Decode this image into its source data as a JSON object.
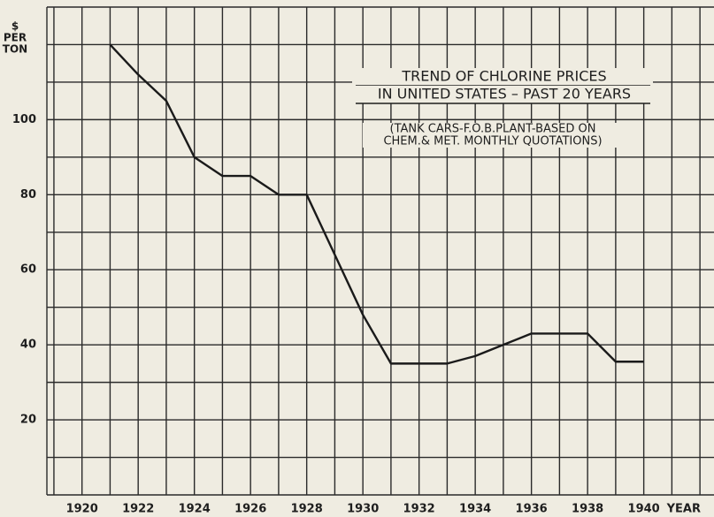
{
  "chart_data": {
    "type": "line",
    "title": [
      "TREND OF CHLORINE PRICES",
      "IN UNITED STATES – PAST 20 YEARS"
    ],
    "subtitle": [
      "(TANK CARS-F.O.B.PLANT-BASED ON",
      "CHEM.& MET. MONTHLY QUOTATIONS)"
    ],
    "ylabel": [
      "$",
      "PER",
      "TON"
    ],
    "xlabel": "YEAR",
    "x": [
      1921,
      1922,
      1923,
      1924,
      1925,
      1926,
      1927,
      1928,
      1930,
      1931,
      1932,
      1933,
      1934,
      1935,
      1936,
      1937,
      1938,
      1939,
      1940
    ],
    "series": [
      {
        "name": "Chlorine price",
        "color": "#1a1a1a",
        "values": [
          120,
          112,
          105,
          90,
          85,
          85,
          80,
          80,
          48,
          35,
          35,
          35,
          37,
          40,
          43,
          43,
          43,
          35.5,
          35.5
        ]
      }
    ],
    "xlim": [
      1918.75,
      1942.5
    ],
    "ylim": [
      0,
      130
    ],
    "xticks": [
      1920,
      1922,
      1924,
      1926,
      1928,
      1930,
      1932,
      1934,
      1936,
      1938,
      1940
    ],
    "yticks": [
      20,
      40,
      60,
      80,
      100
    ],
    "x_gridlines": [
      1919,
      1920,
      1921,
      1922,
      1923,
      1924,
      1925,
      1926,
      1927,
      1928,
      1929,
      1930,
      1931,
      1932,
      1933,
      1934,
      1935,
      1936,
      1937,
      1938,
      1939,
      1940,
      1941,
      1942
    ],
    "y_gridlines": [
      10,
      20,
      30,
      40,
      50,
      60,
      70,
      80,
      90,
      100,
      110,
      120
    ],
    "grid": true
  }
}
